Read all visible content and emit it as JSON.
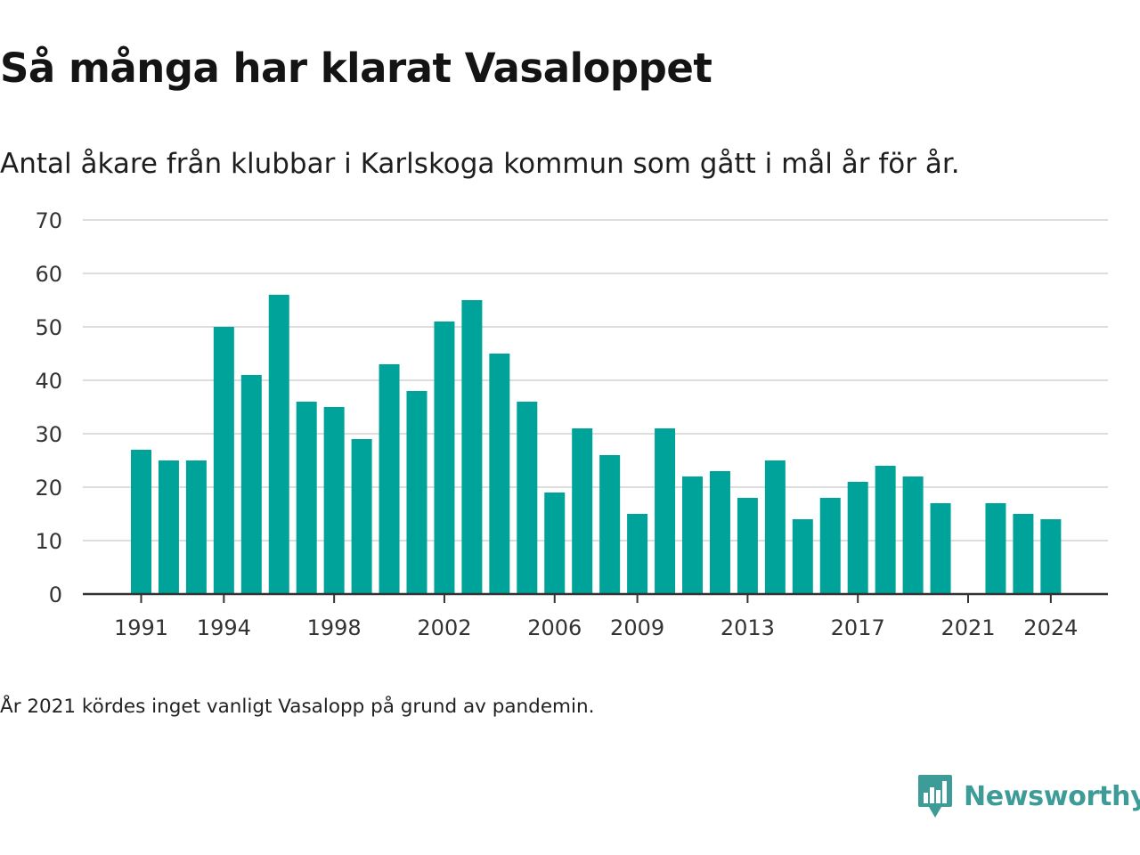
{
  "title": "Så många har klarat Vasaloppet",
  "subtitle": "Antal åkare från klubbar i Karlskoga kommun som gått i mål år för år.",
  "note": "År 2021 kördes inget vanligt Vasalopp på grund av pandemin.",
  "brand": {
    "name": "Newsworthy",
    "color": "#3d9c98"
  },
  "colors": {
    "bar": "#00a39a",
    "grid": "#dddddd",
    "axis": "#333333"
  },
  "chart_data": {
    "type": "bar",
    "categories": [
      "1991",
      "1992",
      "1993",
      "1994",
      "1995",
      "1996",
      "1997",
      "1998",
      "1999",
      "2000",
      "2001",
      "2002",
      "2003",
      "2004",
      "2005",
      "2006",
      "2007",
      "2008",
      "2009",
      "2010",
      "2011",
      "2012",
      "2013",
      "2014",
      "2015",
      "2016",
      "2017",
      "2018",
      "2019",
      "2020",
      "2021",
      "2022",
      "2023",
      "2024"
    ],
    "values": [
      27,
      25,
      25,
      50,
      41,
      56,
      36,
      35,
      29,
      43,
      38,
      51,
      55,
      45,
      36,
      19,
      31,
      26,
      15,
      31,
      22,
      23,
      18,
      25,
      14,
      18,
      21,
      24,
      22,
      17,
      0,
      17,
      15,
      14
    ],
    "x_tick_labels": [
      "1991",
      "1994",
      "1998",
      "2002",
      "2006",
      "2009",
      "2013",
      "2017",
      "2021",
      "2024"
    ],
    "y_ticks": [
      0,
      10,
      20,
      30,
      40,
      50,
      60,
      70
    ],
    "ylim": [
      0,
      70
    ],
    "grid": true,
    "legend": "none"
  }
}
